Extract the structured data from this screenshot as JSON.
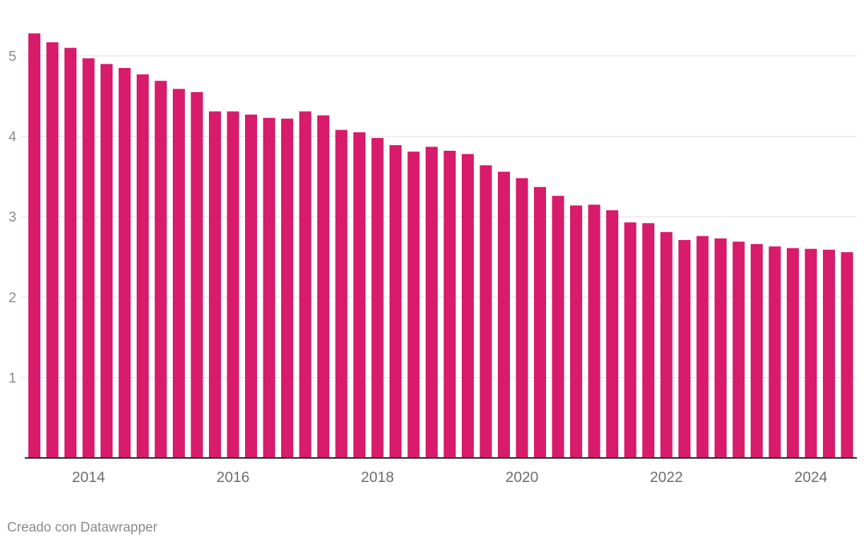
{
  "chart_data": {
    "type": "bar",
    "x_unit": "quarter",
    "categories": [
      "2013-Q2",
      "2013-Q3",
      "2013-Q4",
      "2014-Q1",
      "2014-Q2",
      "2014-Q3",
      "2014-Q4",
      "2015-Q1",
      "2015-Q2",
      "2015-Q3",
      "2015-Q4",
      "2016-Q1",
      "2016-Q2",
      "2016-Q3",
      "2016-Q4",
      "2017-Q1",
      "2017-Q2",
      "2017-Q3",
      "2017-Q4",
      "2018-Q1",
      "2018-Q2",
      "2018-Q3",
      "2018-Q4",
      "2019-Q1",
      "2019-Q2",
      "2019-Q3",
      "2019-Q4",
      "2020-Q1",
      "2020-Q2",
      "2020-Q3",
      "2020-Q4",
      "2021-Q1",
      "2021-Q2",
      "2021-Q3",
      "2021-Q4",
      "2022-Q1",
      "2022-Q2",
      "2022-Q3",
      "2022-Q4",
      "2023-Q1",
      "2023-Q2",
      "2023-Q3",
      "2023-Q4",
      "2024-Q1",
      "2024-Q2",
      "2024-Q3"
    ],
    "values": [
      5.28,
      5.17,
      5.1,
      4.97,
      4.9,
      4.85,
      4.77,
      4.69,
      4.59,
      4.55,
      4.31,
      4.31,
      4.27,
      4.23,
      4.22,
      4.31,
      4.26,
      4.08,
      4.05,
      3.98,
      3.89,
      3.81,
      3.87,
      3.82,
      3.78,
      3.64,
      3.56,
      3.48,
      3.37,
      3.26,
      3.14,
      3.15,
      3.08,
      2.93,
      2.92,
      2.81,
      2.71,
      2.76,
      2.73,
      2.69,
      2.66,
      2.63,
      2.61,
      2.6,
      2.59,
      2.56
    ],
    "x_tick_labels": [
      "2014",
      "2016",
      "2018",
      "2020",
      "2022",
      "2024"
    ],
    "y_tick_labels": [
      "1",
      "2",
      "3",
      "4",
      "5"
    ],
    "ylim": [
      0,
      5.3
    ],
    "title": "",
    "xlabel": "",
    "ylabel": "",
    "grid": true,
    "legend": "none",
    "bar_color": "#d81b6a"
  },
  "credit": "Creado con Datawrapper"
}
